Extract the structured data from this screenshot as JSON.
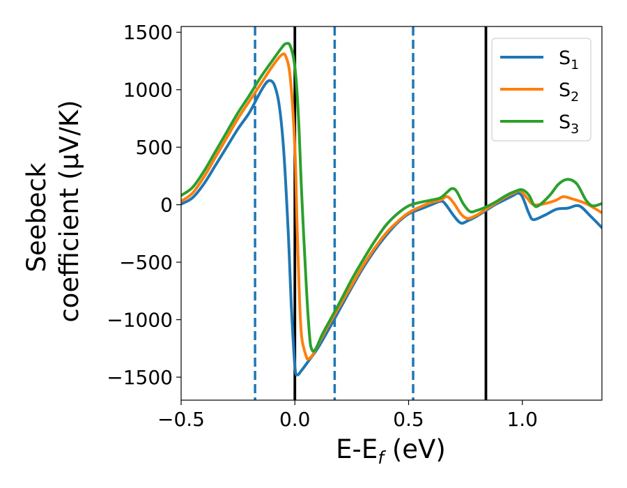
{
  "chart_data": {
    "type": "line",
    "xlabel": "E-E",
    "xlabel_sub": "f",
    "xlabel_unit": "(eV)",
    "ylabel_line1": "Seebeck",
    "ylabel_line2": "coefficient  (μV/K)",
    "xlim": [
      -0.5,
      1.35
    ],
    "ylim": [
      -1700,
      1550
    ],
    "x_ticks": [
      -0.5,
      0.0,
      0.5,
      1.0
    ],
    "x_tick_labels": [
      "−0.5",
      "0.0",
      "0.5",
      "1.0"
    ],
    "y_ticks": [
      -1500,
      -1000,
      -500,
      0,
      500,
      1000,
      1500
    ],
    "y_tick_labels": [
      "−1500",
      "−1000",
      "−500",
      "0",
      "500",
      "1000",
      "1500"
    ],
    "grid": false,
    "legend_position": "top-right",
    "vlines": [
      {
        "x": -0.175,
        "style": "dashed",
        "color": "#1f77b4"
      },
      {
        "x": 0.0,
        "style": "solid",
        "color": "#000000"
      },
      {
        "x": 0.175,
        "style": "dashed",
        "color": "#1f77b4"
      },
      {
        "x": 0.52,
        "style": "dashed",
        "color": "#1f77b4"
      },
      {
        "x": 0.84,
        "style": "solid",
        "color": "#000000"
      }
    ],
    "series": [
      {
        "name": "S",
        "sub": "1",
        "color": "#1f77b4",
        "points": [
          [
            -0.5,
            5
          ],
          [
            -0.45,
            60
          ],
          [
            -0.4,
            180
          ],
          [
            -0.35,
            340
          ],
          [
            -0.3,
            500
          ],
          [
            -0.25,
            660
          ],
          [
            -0.2,
            800
          ],
          [
            -0.16,
            950
          ],
          [
            -0.13,
            1050
          ],
          [
            -0.11,
            1080
          ],
          [
            -0.09,
            1040
          ],
          [
            -0.07,
            880
          ],
          [
            -0.05,
            500
          ],
          [
            -0.03,
            -200
          ],
          [
            -0.015,
            -900
          ],
          [
            0.0,
            -1400
          ],
          [
            0.01,
            -1480
          ],
          [
            0.03,
            -1440
          ],
          [
            0.06,
            -1360
          ],
          [
            0.1,
            -1250
          ],
          [
            0.15,
            -1080
          ],
          [
            0.2,
            -900
          ],
          [
            0.25,
            -720
          ],
          [
            0.3,
            -550
          ],
          [
            0.35,
            -400
          ],
          [
            0.4,
            -270
          ],
          [
            0.45,
            -160
          ],
          [
            0.5,
            -80
          ],
          [
            0.55,
            -40
          ],
          [
            0.6,
            0
          ],
          [
            0.64,
            30
          ],
          [
            0.66,
            10
          ],
          [
            0.7,
            -100
          ],
          [
            0.73,
            -160
          ],
          [
            0.76,
            -140
          ],
          [
            0.8,
            -100
          ],
          [
            0.84,
            -50
          ],
          [
            0.88,
            0
          ],
          [
            0.92,
            40
          ],
          [
            0.96,
            80
          ],
          [
            0.98,
            100
          ],
          [
            1.0,
            70
          ],
          [
            1.03,
            -80
          ],
          [
            1.05,
            -130
          ],
          [
            1.1,
            -90
          ],
          [
            1.15,
            -40
          ],
          [
            1.2,
            -30
          ],
          [
            1.25,
            -10
          ],
          [
            1.3,
            -100
          ],
          [
            1.35,
            -200
          ]
        ]
      },
      {
        "name": "S",
        "sub": "2",
        "color": "#ff7f0e",
        "points": [
          [
            -0.5,
            30
          ],
          [
            -0.45,
            100
          ],
          [
            -0.4,
            240
          ],
          [
            -0.35,
            410
          ],
          [
            -0.3,
            580
          ],
          [
            -0.25,
            750
          ],
          [
            -0.2,
            900
          ],
          [
            -0.15,
            1050
          ],
          [
            -0.1,
            1200
          ],
          [
            -0.06,
            1300
          ],
          [
            -0.04,
            1290
          ],
          [
            -0.02,
            1100
          ],
          [
            0.0,
            500
          ],
          [
            0.01,
            -200
          ],
          [
            0.02,
            -800
          ],
          [
            0.03,
            -1150
          ],
          [
            0.05,
            -1320
          ],
          [
            0.06,
            -1340
          ],
          [
            0.08,
            -1300
          ],
          [
            0.12,
            -1150
          ],
          [
            0.15,
            -1040
          ],
          [
            0.2,
            -870
          ],
          [
            0.25,
            -700
          ],
          [
            0.3,
            -530
          ],
          [
            0.35,
            -380
          ],
          [
            0.4,
            -250
          ],
          [
            0.45,
            -150
          ],
          [
            0.5,
            -70
          ],
          [
            0.55,
            -20
          ],
          [
            0.6,
            20
          ],
          [
            0.64,
            40
          ],
          [
            0.67,
            70
          ],
          [
            0.7,
            10
          ],
          [
            0.73,
            -80
          ],
          [
            0.76,
            -120
          ],
          [
            0.8,
            -90
          ],
          [
            0.84,
            -40
          ],
          [
            0.88,
            10
          ],
          [
            0.92,
            60
          ],
          [
            0.96,
            100
          ],
          [
            0.99,
            120
          ],
          [
            1.02,
            60
          ],
          [
            1.05,
            0
          ],
          [
            1.1,
            10
          ],
          [
            1.15,
            40
          ],
          [
            1.18,
            70
          ],
          [
            1.22,
            50
          ],
          [
            1.28,
            10
          ],
          [
            1.35,
            -70
          ]
        ]
      },
      {
        "name": "S",
        "sub": "3",
        "color": "#2ca02c",
        "points": [
          [
            -0.5,
            80
          ],
          [
            -0.45,
            150
          ],
          [
            -0.4,
            290
          ],
          [
            -0.35,
            460
          ],
          [
            -0.3,
            630
          ],
          [
            -0.25,
            800
          ],
          [
            -0.2,
            950
          ],
          [
            -0.15,
            1110
          ],
          [
            -0.1,
            1250
          ],
          [
            -0.06,
            1360
          ],
          [
            -0.04,
            1400
          ],
          [
            -0.02,
            1380
          ],
          [
            0.0,
            1200
          ],
          [
            0.015,
            800
          ],
          [
            0.03,
            100
          ],
          [
            0.05,
            -700
          ],
          [
            0.065,
            -1150
          ],
          [
            0.075,
            -1260
          ],
          [
            0.09,
            -1260
          ],
          [
            0.12,
            -1130
          ],
          [
            0.15,
            -1020
          ],
          [
            0.2,
            -840
          ],
          [
            0.25,
            -650
          ],
          [
            0.3,
            -480
          ],
          [
            0.35,
            -320
          ],
          [
            0.4,
            -180
          ],
          [
            0.45,
            -80
          ],
          [
            0.5,
            -10
          ],
          [
            0.55,
            20
          ],
          [
            0.6,
            40
          ],
          [
            0.64,
            60
          ],
          [
            0.67,
            110
          ],
          [
            0.69,
            140
          ],
          [
            0.71,
            120
          ],
          [
            0.74,
            10
          ],
          [
            0.77,
            -60
          ],
          [
            0.8,
            -50
          ],
          [
            0.84,
            -20
          ],
          [
            0.88,
            20
          ],
          [
            0.92,
            70
          ],
          [
            0.96,
            110
          ],
          [
            1.0,
            130
          ],
          [
            1.03,
            80
          ],
          [
            1.05,
            0
          ],
          [
            1.07,
            -10
          ],
          [
            1.12,
            80
          ],
          [
            1.16,
            180
          ],
          [
            1.2,
            220
          ],
          [
            1.24,
            180
          ],
          [
            1.28,
            40
          ],
          [
            1.31,
            -10
          ],
          [
            1.35,
            10
          ]
        ]
      }
    ]
  }
}
